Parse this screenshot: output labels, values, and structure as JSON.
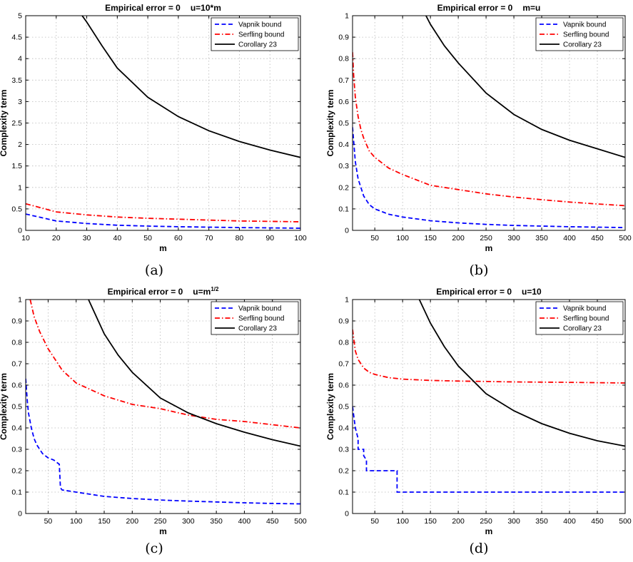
{
  "chart_data": [
    {
      "type": "line",
      "panel_caption": "(a)",
      "title_left": "Empirical error = 0",
      "title_right": "u=10*m",
      "title_right_sup": "",
      "xlabel": "m",
      "ylabel": "Complexity term",
      "xlim": [
        10,
        100
      ],
      "ylim": [
        0,
        5
      ],
      "xticks": [
        10,
        20,
        30,
        40,
        50,
        60,
        70,
        80,
        90,
        100
      ],
      "yticks": [
        0,
        0.5,
        1,
        1.5,
        2,
        2.5,
        3,
        3.5,
        4,
        4.5,
        5
      ],
      "grid": true,
      "legend_position": "top-right",
      "series": [
        {
          "name": "Vapnik bound",
          "color": "#0000ff",
          "style": "dashed",
          "x": [
            10,
            20,
            30,
            40,
            50,
            60,
            70,
            80,
            90,
            100
          ],
          "y": [
            0.38,
            0.22,
            0.16,
            0.12,
            0.1,
            0.085,
            0.075,
            0.065,
            0.058,
            0.05
          ]
        },
        {
          "name": "Serfling bound",
          "color": "#ff0000",
          "style": "dashdot",
          "x": [
            10,
            20,
            30,
            40,
            50,
            60,
            70,
            80,
            90,
            100
          ],
          "y": [
            0.62,
            0.43,
            0.36,
            0.31,
            0.28,
            0.26,
            0.24,
            0.22,
            0.21,
            0.2
          ]
        },
        {
          "name": "Corollary 23",
          "color": "#000000",
          "style": "solid",
          "x": [
            28.5,
            30,
            35,
            40,
            50,
            60,
            70,
            80,
            90,
            100
          ],
          "y": [
            5,
            4.85,
            4.3,
            3.78,
            3.1,
            2.65,
            2.32,
            2.07,
            1.87,
            1.7
          ]
        }
      ]
    },
    {
      "type": "line",
      "panel_caption": "(b)",
      "title_left": "Empirical error = 0",
      "title_right": "m=u",
      "title_right_sup": "",
      "xlabel": "m",
      "ylabel": "Complexity term",
      "xlim": [
        10,
        500
      ],
      "ylim": [
        0,
        1
      ],
      "xticks": [
        50,
        100,
        150,
        200,
        250,
        300,
        350,
        400,
        450,
        500
      ],
      "yticks": [
        0,
        0.1,
        0.2,
        0.3,
        0.4,
        0.5,
        0.6,
        0.7,
        0.8,
        0.9,
        1
      ],
      "grid": true,
      "legend_position": "top-right",
      "series": [
        {
          "name": "Vapnik bound",
          "color": "#0000ff",
          "style": "dashed",
          "x": [
            10,
            15,
            20,
            30,
            40,
            50,
            75,
            100,
            150,
            200,
            250,
            300,
            400,
            500
          ],
          "y": [
            0.48,
            0.32,
            0.24,
            0.16,
            0.12,
            0.1,
            0.075,
            0.062,
            0.045,
            0.035,
            0.028,
            0.023,
            0.017,
            0.013
          ]
        },
        {
          "name": "Serfling bound",
          "color": "#ff0000",
          "style": "dashdot",
          "x": [
            10,
            12,
            15,
            20,
            25,
            30,
            40,
            50,
            75,
            100,
            150,
            200,
            250,
            300,
            350,
            400,
            450,
            500
          ],
          "y": [
            0.83,
            0.72,
            0.62,
            0.53,
            0.47,
            0.43,
            0.37,
            0.34,
            0.29,
            0.26,
            0.21,
            0.19,
            0.17,
            0.155,
            0.143,
            0.132,
            0.123,
            0.115
          ]
        },
        {
          "name": "Corollary 23",
          "color": "#000000",
          "style": "solid",
          "x": [
            142,
            150,
            175,
            200,
            250,
            300,
            350,
            400,
            450,
            500
          ],
          "y": [
            1,
            0.96,
            0.86,
            0.78,
            0.64,
            0.54,
            0.47,
            0.42,
            0.38,
            0.34
          ]
        }
      ]
    },
    {
      "type": "line",
      "panel_caption": "(c)",
      "title_left": "Empirical error = 0",
      "title_right": "u=m",
      "title_right_sup": "1/2",
      "xlabel": "m",
      "ylabel": "Complexity term",
      "xlim": [
        10,
        500
      ],
      "ylim": [
        0,
        1
      ],
      "xticks": [
        50,
        100,
        150,
        200,
        250,
        300,
        350,
        400,
        450,
        500
      ],
      "yticks": [
        0,
        0.1,
        0.2,
        0.3,
        0.4,
        0.5,
        0.6,
        0.7,
        0.8,
        0.9,
        1
      ],
      "grid": true,
      "legend_position": "top-right",
      "series": [
        {
          "name": "Vapnik bound",
          "color": "#0000ff",
          "style": "dashed",
          "x": [
            10,
            13,
            15,
            20,
            25,
            30,
            40,
            50,
            60,
            70,
            72,
            75,
            100,
            150,
            200,
            250,
            300,
            350,
            400,
            450,
            500
          ],
          "y": [
            0.63,
            0.52,
            0.47,
            0.4,
            0.35,
            0.32,
            0.28,
            0.26,
            0.25,
            0.23,
            0.12,
            0.11,
            0.1,
            0.08,
            0.07,
            0.063,
            0.058,
            0.054,
            0.05,
            0.047,
            0.045
          ]
        },
        {
          "name": "Serfling bound",
          "color": "#ff0000",
          "style": "dashdot",
          "x": [
            18,
            25,
            35,
            50,
            75,
            100,
            150,
            200,
            250,
            300,
            350,
            400,
            450,
            500
          ],
          "y": [
            1,
            0.92,
            0.85,
            0.77,
            0.67,
            0.61,
            0.55,
            0.51,
            0.49,
            0.46,
            0.44,
            0.43,
            0.415,
            0.4
          ]
        },
        {
          "name": "Corollary 23",
          "color": "#000000",
          "style": "solid",
          "x": [
            122,
            150,
            175,
            200,
            250,
            300,
            350,
            400,
            450,
            500
          ],
          "y": [
            1,
            0.84,
            0.74,
            0.66,
            0.54,
            0.47,
            0.42,
            0.38,
            0.345,
            0.315
          ]
        }
      ]
    },
    {
      "type": "line",
      "panel_caption": "(d)",
      "title_left": "Empirical error = 0",
      "title_right": "u=10",
      "title_right_sup": "",
      "xlabel": "m",
      "ylabel": "Complexity term",
      "xlim": [
        10,
        500
      ],
      "ylim": [
        0,
        1
      ],
      "xticks": [
        50,
        100,
        150,
        200,
        250,
        300,
        350,
        400,
        450,
        500
      ],
      "yticks": [
        0,
        0.1,
        0.2,
        0.3,
        0.4,
        0.5,
        0.6,
        0.7,
        0.8,
        0.9,
        1
      ],
      "grid": true,
      "legend_position": "top-right",
      "series": [
        {
          "name": "Vapnik bound",
          "color": "#0000ff",
          "style": "dashed",
          "x": [
            10,
            15,
            20,
            20,
            30,
            30,
            35,
            35,
            90,
            90,
            500
          ],
          "y": [
            0.5,
            0.4,
            0.35,
            0.3,
            0.3,
            0.27,
            0.25,
            0.2,
            0.2,
            0.1,
            0.1
          ]
        },
        {
          "name": "Serfling bound",
          "color": "#ff0000",
          "style": "dashdot",
          "x": [
            10,
            15,
            20,
            30,
            40,
            50,
            75,
            100,
            150,
            200,
            250,
            300,
            400,
            500
          ],
          "y": [
            0.86,
            0.76,
            0.72,
            0.68,
            0.66,
            0.65,
            0.635,
            0.628,
            0.622,
            0.619,
            0.617,
            0.615,
            0.613,
            0.61
          ]
        },
        {
          "name": "Corollary 23",
          "color": "#000000",
          "style": "solid",
          "x": [
            130,
            150,
            175,
            200,
            250,
            300,
            350,
            400,
            450,
            500
          ],
          "y": [
            1,
            0.89,
            0.78,
            0.69,
            0.56,
            0.48,
            0.42,
            0.375,
            0.34,
            0.315
          ]
        }
      ]
    }
  ]
}
